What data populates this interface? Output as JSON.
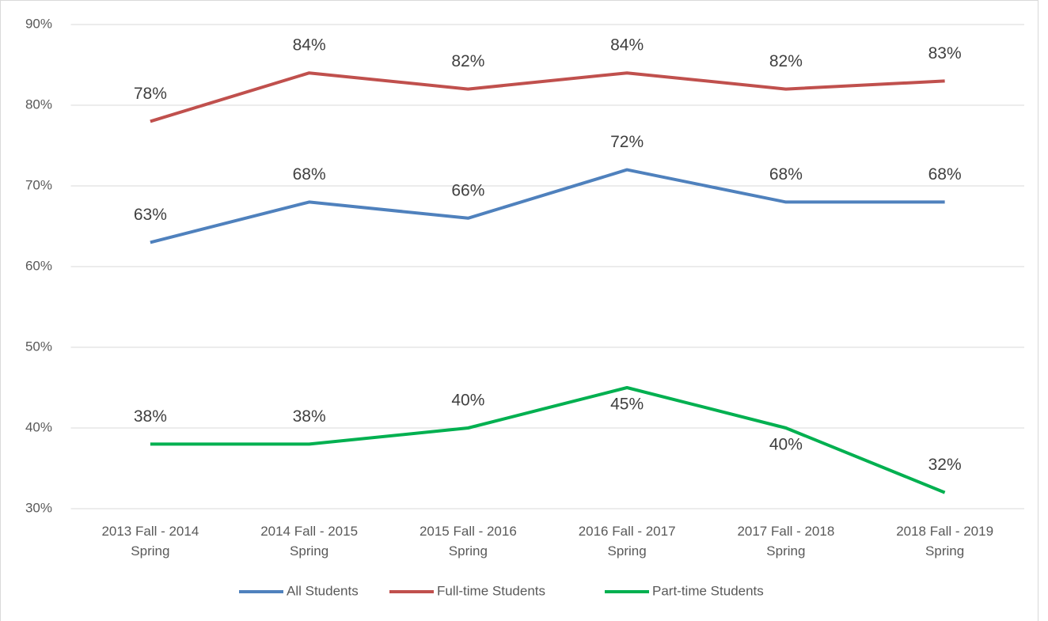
{
  "chart_data": {
    "type": "line",
    "categories": [
      "2013 Fall - 2014 Spring",
      "2014 Fall - 2015 Spring",
      "2015 Fall - 2016 Spring",
      "2016 Fall - 2017 Spring",
      "2017 Fall - 2018 Spring",
      "2018 Fall - 2019 Spring"
    ],
    "series": [
      {
        "name": "All Students",
        "color": "#4f81bd",
        "values": [
          63,
          68,
          66,
          72,
          68,
          68
        ],
        "value_labels": [
          "63%",
          "68%",
          "66%",
          "72%",
          "68%",
          "68%"
        ]
      },
      {
        "name": "Full-time Students",
        "color": "#c0504d",
        "values": [
          78,
          84,
          82,
          84,
          82,
          83
        ],
        "value_labels": [
          "78%",
          "84%",
          "82%",
          "84%",
          "82%",
          "83%"
        ]
      },
      {
        "name": "Part-time Students",
        "color": "#00b050",
        "values": [
          38,
          38,
          40,
          45,
          40,
          32
        ],
        "value_labels": [
          "38%",
          "38%",
          "40%",
          "45%",
          "40%",
          "32%"
        ]
      }
    ],
    "ylim": [
      30,
      90
    ],
    "yticks": [
      {
        "value": 30,
        "label": "30%"
      },
      {
        "value": 40,
        "label": "40%"
      },
      {
        "value": 50,
        "label": "50%"
      },
      {
        "value": 60,
        "label": "60%"
      },
      {
        "value": 70,
        "label": "70%"
      },
      {
        "value": 80,
        "label": "80%"
      },
      {
        "value": 90,
        "label": "90%"
      }
    ],
    "grid": true,
    "legend": "bottom"
  }
}
